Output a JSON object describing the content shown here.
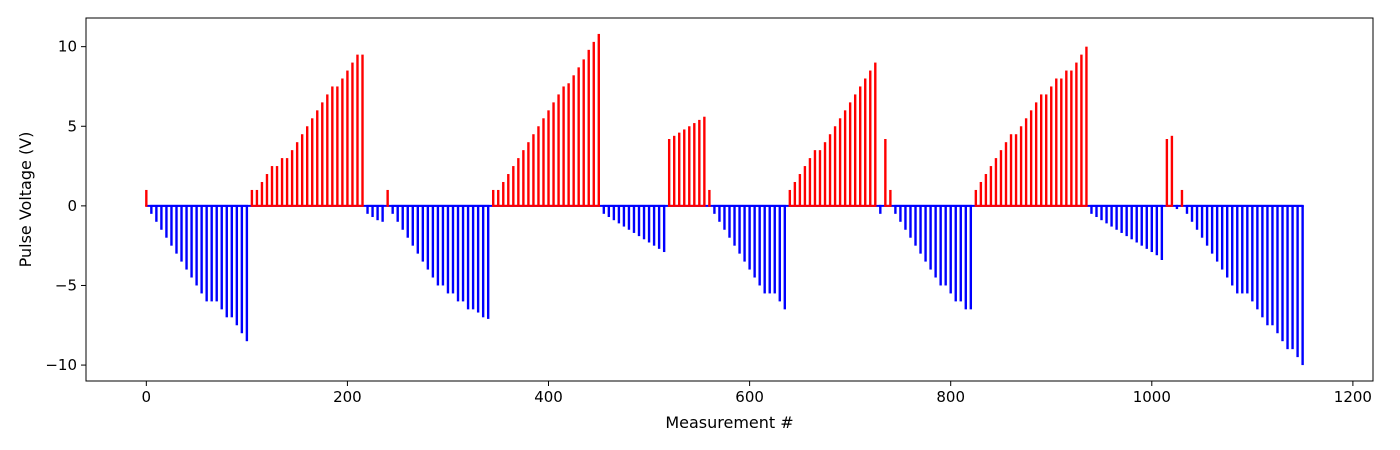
{
  "chart_data": {
    "type": "bar",
    "title": "",
    "xlabel": "Measurement #",
    "ylabel": "Pulse Voltage (V)",
    "xlim": [
      -60,
      1220
    ],
    "ylim": [
      -11.0,
      11.8
    ],
    "xticks": [
      0,
      200,
      400,
      600,
      800,
      1000,
      1200
    ],
    "yticks": [
      -10,
      -5,
      0,
      5,
      10
    ],
    "ytick_labels": [
      "−10",
      "−5",
      "0",
      "5",
      "10"
    ],
    "grid": false,
    "legend": "none",
    "positive_color": "#ff0000",
    "negative_color": "#0000ff",
    "segments": [
      {
        "polarity": "positive",
        "x_start": 0,
        "x_end": 0,
        "values": [
          1.0
        ]
      },
      {
        "polarity": "negative",
        "x_start": 5,
        "x_end": 100,
        "values": [
          -0.5,
          -1.0,
          -1.5,
          -2.0,
          -2.5,
          -3.0,
          -3.5,
          -4.0,
          -4.5,
          -5.0,
          -5.5,
          -6.0,
          -6.0,
          -6.0,
          -6.5,
          -7.0,
          -7.0,
          -7.5,
          -8.0,
          -8.5
        ]
      },
      {
        "polarity": "positive",
        "x_start": 105,
        "x_end": 215,
        "values": [
          1.0,
          1.0,
          1.5,
          2.0,
          2.5,
          2.5,
          3.0,
          3.0,
          3.5,
          4.0,
          4.5,
          5.0,
          5.5,
          6.0,
          6.5,
          7.0,
          7.5,
          7.5,
          8.0,
          8.5,
          9.0,
          9.5,
          9.5
        ]
      },
      {
        "polarity": "negative",
        "x_start": 220,
        "x_end": 235,
        "values": [
          -0.5,
          -0.7,
          -0.9,
          -1.0
        ]
      },
      {
        "polarity": "positive",
        "x_start": 240,
        "x_end": 240,
        "values": [
          1.0
        ]
      },
      {
        "polarity": "negative",
        "x_start": 245,
        "x_end": 340,
        "values": [
          -0.5,
          -1.0,
          -1.5,
          -2.0,
          -2.5,
          -3.0,
          -3.5,
          -4.0,
          -4.5,
          -5.0,
          -5.0,
          -5.5,
          -5.5,
          -6.0,
          -6.0,
          -6.5,
          -6.5,
          -6.7,
          -7.0,
          -7.1
        ]
      },
      {
        "polarity": "positive",
        "x_start": 345,
        "x_end": 450,
        "values": [
          1.0,
          1.0,
          1.5,
          2.0,
          2.5,
          3.0,
          3.5,
          4.0,
          4.5,
          5.0,
          5.5,
          6.0,
          6.5,
          7.0,
          7.5,
          7.7,
          8.2,
          8.7,
          9.2,
          9.8,
          10.3,
          10.8
        ]
      },
      {
        "polarity": "negative",
        "x_start": 455,
        "x_end": 515,
        "values": [
          -0.5,
          -0.7,
          -0.9,
          -1.1,
          -1.3,
          -1.5,
          -1.7,
          -1.9,
          -2.1,
          -2.3,
          -2.5,
          -2.7,
          -2.9
        ]
      },
      {
        "polarity": "positive",
        "x_start": 520,
        "x_end": 555,
        "values": [
          4.2,
          4.4,
          4.6,
          4.8,
          5.0,
          5.2,
          5.4,
          5.6
        ]
      },
      {
        "polarity": "positive",
        "x_start": 560,
        "x_end": 560,
        "values": [
          1.0
        ]
      },
      {
        "polarity": "negative",
        "x_start": 565,
        "x_end": 635,
        "values": [
          -0.5,
          -1.0,
          -1.5,
          -2.0,
          -2.5,
          -3.0,
          -3.5,
          -4.0,
          -4.5,
          -5.0,
          -5.5,
          -5.5,
          -5.5,
          -6.0,
          -6.5
        ]
      },
      {
        "polarity": "positive",
        "x_start": 640,
        "x_end": 725,
        "values": [
          1.0,
          1.5,
          2.0,
          2.5,
          3.0,
          3.5,
          3.5,
          4.0,
          4.5,
          5.0,
          5.5,
          6.0,
          6.5,
          7.0,
          7.5,
          8.0,
          8.5,
          9.0
        ]
      },
      {
        "polarity": "negative",
        "x_start": 730,
        "x_end": 730,
        "values": [
          -0.5
        ]
      },
      {
        "polarity": "positive",
        "x_start": 735,
        "x_end": 740,
        "values": [
          4.2,
          1.0
        ]
      },
      {
        "polarity": "negative",
        "x_start": 745,
        "x_end": 820,
        "values": [
          -0.5,
          -1.0,
          -1.5,
          -2.0,
          -2.5,
          -3.0,
          -3.5,
          -4.0,
          -4.5,
          -5.0,
          -5.0,
          -5.5,
          -6.0,
          -6.0,
          -6.5,
          -6.5
        ]
      },
      {
        "polarity": "positive",
        "x_start": 825,
        "x_end": 935,
        "values": [
          1.0,
          1.5,
          2.0,
          2.5,
          3.0,
          3.5,
          4.0,
          4.5,
          4.5,
          5.0,
          5.5,
          6.0,
          6.5,
          7.0,
          7.0,
          7.5,
          8.0,
          8.0,
          8.5,
          8.5,
          9.0,
          9.5,
          10.0
        ]
      },
      {
        "polarity": "negative",
        "x_start": 940,
        "x_end": 1010,
        "values": [
          -0.5,
          -0.7,
          -0.9,
          -1.1,
          -1.3,
          -1.5,
          -1.7,
          -1.9,
          -2.1,
          -2.3,
          -2.5,
          -2.7,
          -2.9,
          -3.1,
          -3.4
        ]
      },
      {
        "polarity": "positive",
        "x_start": 1015,
        "x_end": 1020,
        "values": [
          4.2,
          4.4
        ]
      },
      {
        "polarity": "negative",
        "x_start": 1025,
        "x_end": 1025,
        "values": [
          -0.2
        ]
      },
      {
        "polarity": "positive",
        "x_start": 1030,
        "x_end": 1030,
        "values": [
          1.0
        ]
      },
      {
        "polarity": "negative",
        "x_start": 1035,
        "x_end": 1150,
        "values": [
          -0.5,
          -1.0,
          -1.5,
          -2.0,
          -2.5,
          -3.0,
          -3.5,
          -4.0,
          -4.5,
          -5.0,
          -5.5,
          -5.5,
          -5.5,
          -6.0,
          -6.5,
          -7.0,
          -7.5,
          -7.5,
          -8.0,
          -8.5,
          -9.0,
          -9.0,
          -9.5,
          -10.0
        ]
      }
    ]
  }
}
